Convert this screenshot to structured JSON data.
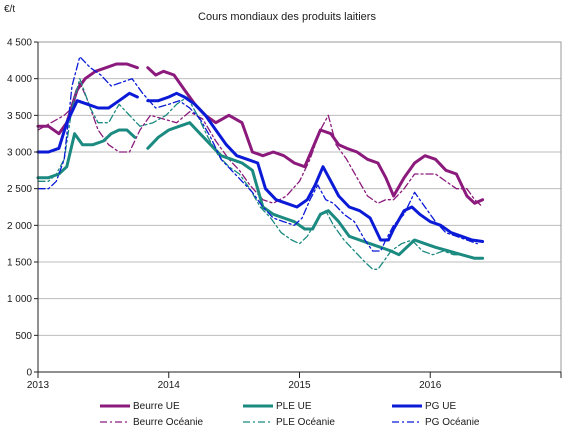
{
  "chart_data": {
    "type": "line",
    "title": "Cours mondiaux des produits laitiers",
    "ylabel": "€/t",
    "xlabel": "",
    "ylim": [
      0,
      4500
    ],
    "y_ticks": [
      0,
      500,
      1000,
      1500,
      2000,
      2500,
      3000,
      3500,
      4000,
      4500
    ],
    "y_tick_labels": [
      "0",
      "500",
      "1 000",
      "1 500",
      "2 000",
      "2 500",
      "3 000",
      "3 500",
      "4 000",
      "4 500"
    ],
    "xlim": [
      2013.0,
      2017.0
    ],
    "x_ticks": [
      2013,
      2014,
      2015,
      2016
    ],
    "x_tick_labels": [
      "2013",
      "2014",
      "2015",
      "2016"
    ],
    "grid": "horizontal",
    "legend_position": "bottom",
    "series": [
      {
        "name": "Beurre UE",
        "color": "#8b1a7c",
        "style": "solid",
        "x": [
          2013.0,
          2013.08,
          2013.16,
          2013.22,
          2013.3,
          2013.36,
          2013.44,
          2013.52,
          2013.6,
          2013.68,
          2013.76,
          null,
          2013.84,
          2013.9,
          2013.96,
          2014.04,
          2014.12,
          2014.2,
          2014.28,
          2014.36,
          2014.46,
          2014.56,
          2014.64,
          2014.72,
          2014.8,
          2014.88,
          2014.96,
          2015.04,
          2015.1,
          2015.16,
          2015.24,
          2015.3,
          2015.36,
          2015.44,
          2015.52,
          2015.6,
          2015.66,
          2015.72,
          2015.8,
          2015.88,
          2015.96,
          2016.04,
          2016.12,
          2016.2,
          2016.28,
          2016.34,
          2016.4
        ],
        "y": [
          3350,
          3350,
          3250,
          3400,
          3850,
          4000,
          4100,
          4150,
          4200,
          4200,
          4150,
          null,
          4150,
          4050,
          4100,
          4050,
          3850,
          3650,
          3500,
          3400,
          3500,
          3400,
          3000,
          2950,
          3000,
          2950,
          2850,
          2800,
          3050,
          3300,
          3250,
          3100,
          3050,
          3000,
          2900,
          2850,
          2650,
          2400,
          2650,
          2850,
          2950,
          2900,
          2750,
          2700,
          2400,
          2300,
          2350
        ]
      },
      {
        "name": "Beurre Océanie",
        "color": "#8b1a7c",
        "style": "dashdot",
        "x": [
          2013.0,
          2013.1,
          2013.2,
          2013.26,
          2013.32,
          2013.38,
          2013.46,
          2013.54,
          2013.62,
          2013.7,
          2013.78,
          2013.86,
          2013.96,
          2014.06,
          2014.16,
          2014.26,
          2014.36,
          2014.46,
          2014.54,
          2014.62,
          2014.72,
          2014.8,
          2014.9,
          2015.0,
          2015.08,
          2015.16,
          2015.22,
          2015.28,
          2015.36,
          2015.44,
          2015.52,
          2015.6,
          2015.66,
          2015.72,
          2015.8,
          2015.88,
          2015.96,
          2016.04,
          2016.12,
          2016.2,
          2016.28,
          2016.34,
          2016.4
        ],
        "y": [
          3300,
          3400,
          3500,
          3600,
          3950,
          3700,
          3300,
          3100,
          3000,
          3000,
          3300,
          3500,
          3450,
          3400,
          3550,
          3450,
          3150,
          2900,
          2750,
          2550,
          2350,
          2300,
          2400,
          2600,
          2900,
          3300,
          3500,
          3100,
          2900,
          2650,
          2400,
          2300,
          2350,
          2350,
          2500,
          2700,
          2700,
          2700,
          2600,
          2500,
          2500,
          2350,
          2250
        ]
      },
      {
        "name": "PLE UE",
        "color": "#1b8a80",
        "style": "solid",
        "x": [
          2013.0,
          2013.08,
          2013.16,
          2013.22,
          2013.28,
          2013.34,
          2013.42,
          2013.5,
          2013.56,
          2013.62,
          2013.68,
          2013.74,
          null,
          2013.84,
          2013.92,
          2014.0,
          2014.08,
          2014.16,
          2014.24,
          2014.32,
          2014.4,
          2014.48,
          2014.56,
          2014.64,
          2014.72,
          2014.8,
          2014.88,
          2014.96,
          2015.04,
          2015.1,
          2015.16,
          2015.22,
          2015.3,
          2015.38,
          2015.46,
          2015.54,
          2015.62,
          2015.7,
          2015.76,
          2015.82,
          2015.88,
          2015.96,
          2016.04,
          2016.14,
          2016.24,
          2016.34,
          2016.4
        ],
        "y": [
          2650,
          2650,
          2700,
          2800,
          3250,
          3100,
          3100,
          3150,
          3250,
          3300,
          3300,
          3200,
          null,
          3050,
          3200,
          3300,
          3350,
          3400,
          3250,
          3100,
          2950,
          2900,
          2850,
          2750,
          2250,
          2150,
          2100,
          2050,
          1950,
          1950,
          2150,
          2200,
          2050,
          1850,
          1800,
          1750,
          1700,
          1650,
          1600,
          1700,
          1800,
          1750,
          1700,
          1650,
          1600,
          1550,
          1550
        ]
      },
      {
        "name": "PLE Océanie",
        "color": "#1b8a80",
        "style": "dashdot",
        "x": [
          2013.0,
          2013.08,
          2013.14,
          2013.2,
          2013.26,
          2013.32,
          2013.4,
          2013.46,
          2013.54,
          2013.62,
          2013.7,
          2013.78,
          2013.88,
          2013.98,
          2014.06,
          2014.14,
          2014.22,
          2014.3,
          2014.38,
          2014.46,
          2014.54,
          2014.62,
          2014.7,
          2014.78,
          2014.86,
          2014.94,
          2015.0,
          2015.06,
          2015.14,
          2015.2,
          2015.26,
          2015.34,
          2015.42,
          2015.5,
          2015.56,
          2015.6,
          2015.64,
          2015.7,
          2015.78,
          2015.86,
          2015.94,
          2016.02,
          2016.1,
          2016.18,
          2016.26,
          2016.34
        ],
        "y": [
          2600,
          2600,
          2700,
          2900,
          3600,
          4000,
          3600,
          3400,
          3400,
          3650,
          3500,
          3350,
          3400,
          3500,
          3650,
          3750,
          3500,
          3200,
          2950,
          2800,
          2700,
          2500,
          2250,
          2100,
          1900,
          1800,
          1750,
          1850,
          2100,
          2200,
          2000,
          1800,
          1650,
          1500,
          1400,
          1400,
          1500,
          1650,
          1750,
          1800,
          1650,
          1600,
          1650,
          1600,
          1600,
          1550
        ]
      },
      {
        "name": "PG UE",
        "color": "#0b1ad6",
        "style": "solid",
        "x": [
          2013.0,
          2013.08,
          2013.16,
          2013.22,
          2013.3,
          2013.38,
          2013.46,
          2013.54,
          2013.62,
          2013.7,
          2013.76,
          null,
          2013.84,
          2013.92,
          2014.0,
          2014.06,
          2014.12,
          2014.2,
          2014.28,
          2014.36,
          2014.44,
          2014.52,
          2014.6,
          2014.68,
          2014.74,
          2014.82,
          2014.9,
          2014.98,
          2015.06,
          2015.12,
          2015.18,
          2015.24,
          2015.3,
          2015.38,
          2015.46,
          2015.54,
          2015.62,
          2015.68,
          2015.72,
          2015.8,
          2015.86,
          2015.92,
          2016.0,
          2016.08,
          2016.16,
          2016.24,
          2016.32,
          2016.4
        ],
        "y": [
          3000,
          3000,
          3050,
          3400,
          3700,
          3650,
          3600,
          3600,
          3700,
          3800,
          3750,
          null,
          3700,
          3700,
          3750,
          3800,
          3750,
          3650,
          3500,
          3300,
          3100,
          2950,
          2900,
          2850,
          2500,
          2350,
          2300,
          2250,
          2350,
          2550,
          2800,
          2600,
          2400,
          2250,
          2200,
          2100,
          1800,
          1800,
          1950,
          2200,
          2250,
          2150,
          2050,
          2000,
          1900,
          1850,
          1800,
          1780
        ]
      },
      {
        "name": "PG Océanie",
        "color": "#0b1ad6",
        "style": "dashdot",
        "x": [
          2013.0,
          2013.08,
          2013.14,
          2013.2,
          2013.26,
          2013.32,
          2013.4,
          2013.48,
          2013.56,
          2013.64,
          2013.72,
          2013.8,
          2013.9,
          2014.0,
          2014.08,
          2014.16,
          2014.24,
          2014.32,
          2014.4,
          2014.48,
          2014.56,
          2014.64,
          2014.72,
          2014.8,
          2014.88,
          2014.96,
          2015.02,
          2015.08,
          2015.14,
          2015.2,
          2015.26,
          2015.34,
          2015.42,
          2015.5,
          2015.56,
          2015.62,
          2015.66,
          2015.72,
          2015.8,
          2015.88,
          2015.96,
          2016.04,
          2016.12,
          2016.2,
          2016.28,
          2016.36
        ],
        "y": [
          2500,
          2500,
          2600,
          2900,
          3900,
          4300,
          4150,
          4050,
          3900,
          3950,
          4000,
          3800,
          3600,
          3650,
          3700,
          3600,
          3450,
          3200,
          2900,
          2750,
          2600,
          2450,
          2250,
          2100,
          2050,
          2000,
          2100,
          2350,
          2550,
          2350,
          2300,
          2150,
          2050,
          1800,
          1650,
          1650,
          1800,
          2000,
          2150,
          2450,
          2250,
          2050,
          1900,
          1850,
          1800,
          1750
        ]
      }
    ]
  }
}
